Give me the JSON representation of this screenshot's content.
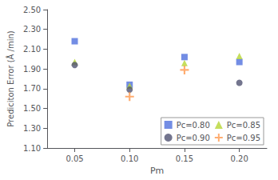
{
  "chart_data": {
    "type": "scatter",
    "xlabel": "Pm",
    "ylabel": "Prediciton Error (Å /min)",
    "x": [
      0.05,
      0.1,
      0.15,
      0.2
    ],
    "series": [
      {
        "name": "Pc=0.80",
        "marker": "square",
        "values": [
          2.18,
          1.74,
          2.02,
          1.97
        ]
      },
      {
        "name": "Pc=0.85",
        "marker": "triangle",
        "values": [
          1.97,
          1.73,
          1.96,
          2.03
        ]
      },
      {
        "name": "Pc=0.90",
        "marker": "circle",
        "values": [
          1.94,
          1.69,
          null,
          1.76
        ]
      },
      {
        "name": "Pc=0.95",
        "marker": "plus",
        "values": [
          null,
          1.62,
          1.89,
          null
        ]
      }
    ],
    "xlim": [
      0.025,
      0.225
    ],
    "xticks": [
      0.05,
      {
        "value": 0.1,
        "label": "0.10"
      },
      0.15,
      {
        "value": 0.2,
        "label": "0.20"
      }
    ],
    "ylim": [
      1.1,
      2.5
    ],
    "yticks": [
      {
        "value": 1.1,
        "label": "1.10"
      },
      {
        "value": 1.3,
        "label": "1.30"
      },
      {
        "value": 1.5,
        "label": "1.50"
      },
      {
        "value": 1.7,
        "label": "1.70"
      },
      {
        "value": 1.9,
        "label": "1.90"
      },
      {
        "value": 2.1,
        "label": "2.10"
      },
      {
        "value": 2.3,
        "label": "2.30"
      },
      {
        "value": 2.5,
        "label": "2.50"
      }
    ],
    "grid": false,
    "legend": "lower right"
  }
}
